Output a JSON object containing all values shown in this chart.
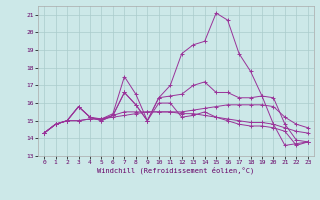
{
  "xlabel": "Windchill (Refroidissement éolien,°C)",
  "bg_color": "#cce8e8",
  "grid_color": "#aacccc",
  "line_color": "#993399",
  "xlim": [
    -0.5,
    23.5
  ],
  "ylim": [
    13,
    21.5
  ],
  "yticks": [
    13,
    14,
    15,
    16,
    17,
    18,
    19,
    20,
    21
  ],
  "xticks": [
    0,
    1,
    2,
    3,
    4,
    5,
    6,
    7,
    8,
    9,
    10,
    11,
    12,
    13,
    14,
    15,
    16,
    17,
    18,
    19,
    20,
    21,
    22,
    23
  ],
  "series": [
    [
      14.3,
      14.8,
      15.0,
      15.8,
      15.2,
      15.1,
      15.4,
      17.5,
      16.5,
      15.0,
      16.3,
      16.4,
      16.5,
      17.0,
      17.2,
      16.6,
      16.6,
      16.3,
      16.3,
      16.4,
      16.3,
      14.8,
      13.9,
      13.8
    ],
    [
      14.3,
      14.8,
      15.0,
      15.8,
      15.2,
      15.0,
      15.3,
      16.6,
      15.9,
      15.0,
      16.0,
      16.0,
      15.2,
      15.3,
      15.5,
      15.2,
      15.0,
      14.8,
      14.7,
      14.7,
      14.6,
      14.4,
      13.6,
      13.8
    ],
    [
      14.3,
      14.8,
      15.0,
      15.0,
      15.1,
      15.1,
      15.3,
      15.5,
      15.5,
      15.5,
      15.5,
      15.5,
      15.5,
      15.6,
      15.7,
      15.8,
      15.9,
      15.9,
      15.9,
      15.9,
      15.8,
      15.2,
      14.8,
      14.6
    ],
    [
      14.3,
      14.8,
      15.0,
      15.0,
      15.1,
      15.1,
      15.2,
      15.3,
      15.4,
      15.5,
      15.5,
      15.5,
      15.4,
      15.4,
      15.3,
      15.2,
      15.1,
      15.0,
      14.9,
      14.9,
      14.8,
      14.6,
      14.4,
      14.3
    ],
    [
      14.3,
      14.8,
      15.0,
      15.8,
      15.2,
      15.0,
      15.3,
      16.6,
      15.9,
      15.0,
      16.3,
      17.0,
      18.8,
      19.3,
      19.5,
      21.1,
      20.7,
      18.8,
      17.8,
      16.4,
      14.8,
      13.6,
      13.7,
      13.8
    ]
  ]
}
